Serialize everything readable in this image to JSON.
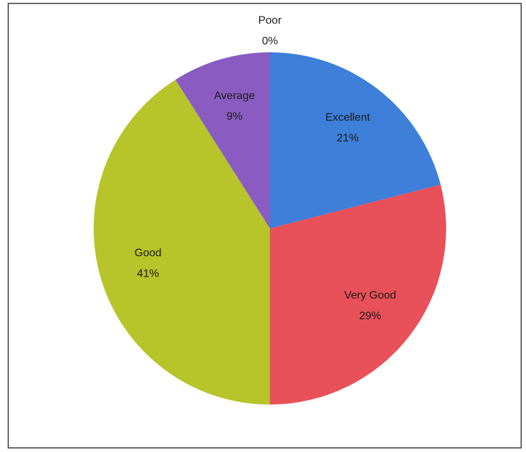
{
  "chart_data": {
    "type": "pie",
    "categories": [
      "Excellent",
      "Very Good",
      "Good",
      "Average",
      "Poor"
    ],
    "values": [
      21,
      29,
      41,
      9,
      0
    ],
    "value_labels": [
      "21%",
      "29%",
      "41%",
      "9%",
      "0%"
    ],
    "colors": [
      "#3d7fd9",
      "#e8505a",
      "#b7c42a",
      "#8a5cc2",
      "#5a9a3a"
    ]
  }
}
